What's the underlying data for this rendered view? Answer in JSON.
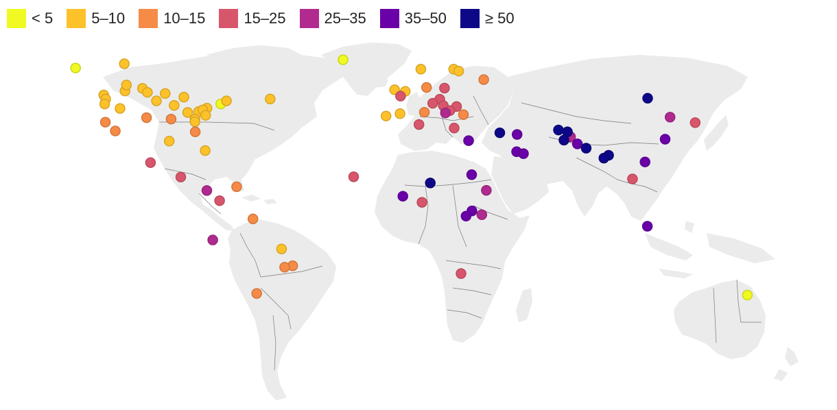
{
  "legend": {
    "items": [
      {
        "label": "< 5",
        "color": "#f0f921"
      },
      {
        "label": "5–10",
        "color": "#fdc12a"
      },
      {
        "label": "10–15",
        "color": "#f58b47"
      },
      {
        "label": "15–25",
        "color": "#d8566c"
      },
      {
        "label": "25–35",
        "color": "#b02a90"
      },
      {
        "label": "35–50",
        "color": "#6a00a8"
      },
      {
        "label": "≥ 50",
        "color": "#0d0887"
      }
    ]
  },
  "map": {
    "land_color": "#ebebeb",
    "border_color": "#777777",
    "projection": "equirectangular",
    "markers": [
      {
        "lat": 60.7,
        "lon": -135.0,
        "bin": 0
      },
      {
        "lat": 64.2,
        "lon": -21.9,
        "bin": 0
      },
      {
        "lat": 45.5,
        "lon": -73.6,
        "bin": 0
      },
      {
        "lat": -35.3,
        "lon": 149.1,
        "bin": 0
      },
      {
        "lat": 62.5,
        "lon": -114.4,
        "bin": 1
      },
      {
        "lat": 49.3,
        "lon": -123.1,
        "bin": 1
      },
      {
        "lat": 49.9,
        "lon": -97.1,
        "bin": 1
      },
      {
        "lat": 51.0,
        "lon": -114.1,
        "bin": 1
      },
      {
        "lat": 53.5,
        "lon": -113.5,
        "bin": 1
      },
      {
        "lat": 52.1,
        "lon": -106.7,
        "bin": 1
      },
      {
        "lat": 50.4,
        "lon": -104.6,
        "bin": 1
      },
      {
        "lat": 47.6,
        "lon": -122.3,
        "bin": 1
      },
      {
        "lat": 45.5,
        "lon": -122.7,
        "bin": 1
      },
      {
        "lat": 46.8,
        "lon": -100.8,
        "bin": 1
      },
      {
        "lat": 44.9,
        "lon": -93.3,
        "bin": 1
      },
      {
        "lat": 48.4,
        "lon": -89.2,
        "bin": 1
      },
      {
        "lat": 41.9,
        "lon": -87.6,
        "bin": 1
      },
      {
        "lat": 42.3,
        "lon": -83.0,
        "bin": 1
      },
      {
        "lat": 43.7,
        "lon": -79.4,
        "bin": 1
      },
      {
        "lat": 43.0,
        "lon": -81.2,
        "bin": 1
      },
      {
        "lat": 40.7,
        "lon": -80.0,
        "bin": 1
      },
      {
        "lat": 39.1,
        "lon": -84.5,
        "bin": 1
      },
      {
        "lat": 46.8,
        "lon": -71.2,
        "bin": 1
      },
      {
        "lat": 47.6,
        "lon": -52.7,
        "bin": 1
      },
      {
        "lat": 43.6,
        "lon": -116.2,
        "bin": 1
      },
      {
        "lat": 29.8,
        "lon": -95.4,
        "bin": 1
      },
      {
        "lat": 25.8,
        "lon": -80.2,
        "bin": 1
      },
      {
        "lat": 38.0,
        "lon": -84.5,
        "bin": 1
      },
      {
        "lat": -15.8,
        "lon": -47.9,
        "bin": 1
      },
      {
        "lat": 60.2,
        "lon": 11.0,
        "bin": 1
      },
      {
        "lat": 60.2,
        "lon": 24.9,
        "bin": 1
      },
      {
        "lat": 59.4,
        "lon": 27.0,
        "bin": 1
      },
      {
        "lat": 51.5,
        "lon": -0.1,
        "bin": 1
      },
      {
        "lat": 50.8,
        "lon": 4.4,
        "bin": 1
      },
      {
        "lat": 40.4,
        "lon": -3.7,
        "bin": 1
      },
      {
        "lat": 41.4,
        "lon": 2.2,
        "bin": 1
      },
      {
        "lat": 37.8,
        "lon": -122.4,
        "bin": 2
      },
      {
        "lat": 34.1,
        "lon": -118.2,
        "bin": 2
      },
      {
        "lat": 39.7,
        "lon": -105.0,
        "bin": 2
      },
      {
        "lat": 39.1,
        "lon": -94.6,
        "bin": 2
      },
      {
        "lat": 33.7,
        "lon": -84.4,
        "bin": 2
      },
      {
        "lat": 10.5,
        "lon": -66.9,
        "bin": 2
      },
      {
        "lat": -3.1,
        "lon": -60.0,
        "bin": 2
      },
      {
        "lat": -22.9,
        "lon": -43.2,
        "bin": 2
      },
      {
        "lat": -23.5,
        "lon": -46.6,
        "bin": 2
      },
      {
        "lat": -34.6,
        "lon": -58.4,
        "bin": 2
      },
      {
        "lat": 55.8,
        "lon": 37.6,
        "bin": 2
      },
      {
        "lat": 52.5,
        "lon": 13.4,
        "bin": 2
      },
      {
        "lat": 41.0,
        "lon": 29.0,
        "bin": 2
      },
      {
        "lat": 42.0,
        "lon": 12.5,
        "bin": 2
      },
      {
        "lat": 20.7,
        "lon": -103.3,
        "bin": 3
      },
      {
        "lat": 14.6,
        "lon": -90.5,
        "bin": 3
      },
      {
        "lat": 4.6,
        "lon": -74.1,
        "bin": 3
      },
      {
        "lat": 14.7,
        "lon": -17.4,
        "bin": 3
      },
      {
        "lat": 36.8,
        "lon": 10.2,
        "bin": 3
      },
      {
        "lat": 48.8,
        "lon": 2.4,
        "bin": 3
      },
      {
        "lat": 52.2,
        "lon": 21.0,
        "bin": 3
      },
      {
        "lat": 47.5,
        "lon": 19.0,
        "bin": 3
      },
      {
        "lat": 44.8,
        "lon": 20.5,
        "bin": 3
      },
      {
        "lat": 45.8,
        "lon": 16.0,
        "bin": 3
      },
      {
        "lat": 44.4,
        "lon": 26.1,
        "bin": 3
      },
      {
        "lat": 42.7,
        "lon": 23.3,
        "bin": 3
      },
      {
        "lat": 35.3,
        "lon": 25.1,
        "bin": 3
      },
      {
        "lat": 37.6,
        "lon": 127.0,
        "bin": 3
      },
      {
        "lat": 13.8,
        "lon": 100.5,
        "bin": 3
      },
      {
        "lat": 3.9,
        "lon": 11.5,
        "bin": 3
      },
      {
        "lat": -26.2,
        "lon": 28.0,
        "bin": 3
      },
      {
        "lat": 8.9,
        "lon": -79.5,
        "bin": 4
      },
      {
        "lat": -12.0,
        "lon": -77.0,
        "bin": 4
      },
      {
        "lat": 41.7,
        "lon": 21.4,
        "bin": 4
      },
      {
        "lat": 39.9,
        "lon": 116.4,
        "bin": 4
      },
      {
        "lat": 31.6,
        "lon": 74.3,
        "bin": 4
      },
      {
        "lat": 9.0,
        "lon": 38.7,
        "bin": 4
      },
      {
        "lat": -1.3,
        "lon": 36.8,
        "bin": 4
      },
      {
        "lat": 30.0,
        "lon": 31.2,
        "bin": 5
      },
      {
        "lat": 32.6,
        "lon": 51.7,
        "bin": 5
      },
      {
        "lat": 25.3,
        "lon": 51.5,
        "bin": 5
      },
      {
        "lat": 24.5,
        "lon": 54.4,
        "bin": 5
      },
      {
        "lat": 15.6,
        "lon": 32.5,
        "bin": 5
      },
      {
        "lat": 6.5,
        "lon": 3.4,
        "bin": 5
      },
      {
        "lat": 0.3,
        "lon": 32.6,
        "bin": 5
      },
      {
        "lat": -1.9,
        "lon": 30.1,
        "bin": 5
      },
      {
        "lat": 30.6,
        "lon": 114.3,
        "bin": 5
      },
      {
        "lat": 21.0,
        "lon": 105.8,
        "bin": 5
      },
      {
        "lat": -6.2,
        "lon": 106.8,
        "bin": 5
      },
      {
        "lat": 28.6,
        "lon": 77.2,
        "bin": 5
      },
      {
        "lat": 47.9,
        "lon": 106.9,
        "bin": 6
      },
      {
        "lat": 33.3,
        "lon": 44.4,
        "bin": 6
      },
      {
        "lat": 34.5,
        "lon": 69.2,
        "bin": 6
      },
      {
        "lat": 33.7,
        "lon": 73.0,
        "bin": 6
      },
      {
        "lat": 30.2,
        "lon": 71.5,
        "bin": 6
      },
      {
        "lat": 26.8,
        "lon": 80.9,
        "bin": 6
      },
      {
        "lat": 23.8,
        "lon": 90.4,
        "bin": 6
      },
      {
        "lat": 22.6,
        "lon": 88.4,
        "bin": 6
      },
      {
        "lat": 12.1,
        "lon": 15.0,
        "bin": 6
      }
    ]
  }
}
